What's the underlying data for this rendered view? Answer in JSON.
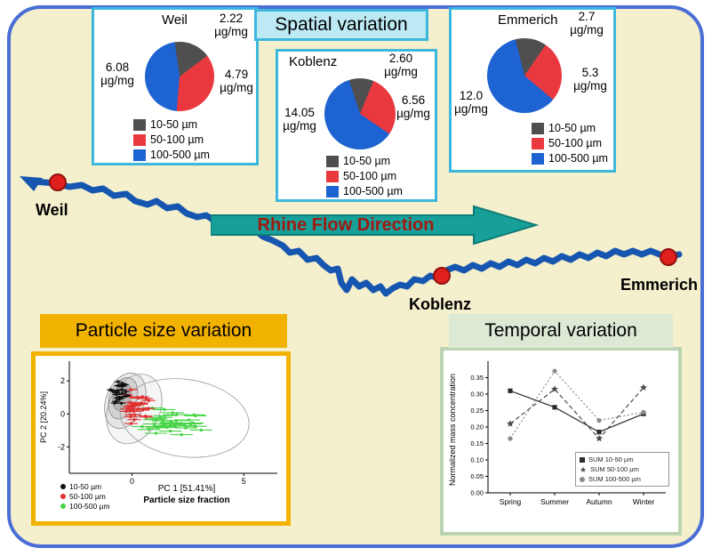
{
  "palette": {
    "figure_bg": "#f4efcd",
    "figure_border": "#4a6ed6",
    "cyan_border": "#3db8dc",
    "cyan_bg": "#bce9f3",
    "gold": "#f2b200",
    "pale_green": "#dce9d5",
    "river_blue": "#1656b0",
    "marker_red": "#e0201c",
    "arrow_teal": "#17a09a",
    "arrow_text_red": "#9e1a10",
    "pie_gray": "#4f4f4f",
    "pie_red": "#e9393f",
    "pie_blue": "#1d63d1"
  },
  "titles": {
    "spatial": "Spatial variation",
    "particle": "Particle size variation",
    "temporal": "Temporal variation"
  },
  "map": {
    "flow_label": "Rhine Flow Direction",
    "sites": [
      "Weil",
      "Koblenz",
      "Emmerich"
    ]
  },
  "unit": "µg/mg",
  "size_legend": [
    "10-50 µm",
    "50-100 µm",
    "100-500 µm"
  ],
  "chart_data": [
    {
      "id": "pie-weil",
      "type": "pie",
      "title": "Weil",
      "labels": [
        "10-50 µm",
        "50-100 µm",
        "100-500 µm"
      ],
      "values": [
        2.22,
        4.79,
        6.08
      ],
      "value_texts": [
        "2.22",
        "4.79",
        "6.08"
      ],
      "unit": "µg/mg",
      "colors": [
        "#4f4f4f",
        "#e9393f",
        "#1d63d1"
      ],
      "start_angle": -8
    },
    {
      "id": "pie-koblenz",
      "type": "pie",
      "title": "Koblenz",
      "labels": [
        "10-50 µm",
        "50-100 µm",
        "100-500 µm"
      ],
      "values": [
        2.6,
        6.56,
        14.05
      ],
      "value_texts": [
        "2.60",
        "6.56",
        "14.05"
      ],
      "unit": "µg/mg",
      "colors": [
        "#4f4f4f",
        "#e9393f",
        "#1d63d1"
      ],
      "start_angle": -18
    },
    {
      "id": "pie-emmerich",
      "type": "pie",
      "title": "Emmerich",
      "labels": [
        "10-50 µm",
        "50-100 µm",
        "100-500 µm"
      ],
      "values": [
        2.7,
        5.3,
        12.0
      ],
      "value_texts": [
        "2.7",
        "5.3",
        "12.0"
      ],
      "unit": "µg/mg",
      "colors": [
        "#4f4f4f",
        "#e9393f",
        "#1d63d1"
      ],
      "start_angle": -14
    },
    {
      "id": "pca",
      "type": "scatter",
      "xlabel": "PC 1 [51.41%]",
      "xlabel2": "Particle size fraction",
      "ylabel": "PC 2 [20.24%]",
      "xlim": [
        -2.8,
        6.5
      ],
      "ylim": [
        -3.6,
        3.2
      ],
      "xticks": [
        0,
        5
      ],
      "yticks": [
        2,
        0,
        -2
      ],
      "legend": [
        "10-50 µm",
        "50-100 µm",
        "100-500 µm"
      ],
      "legend_colors": [
        "#111111",
        "#e03131",
        "#46d446"
      ],
      "clusters": [
        {
          "name": "10-50 µm",
          "color": "#111111",
          "cx": -0.55,
          "cy": 1.2,
          "sx": 0.5,
          "sy": 0.95,
          "n": 26,
          "bar": 0.18,
          "seed": 7
        },
        {
          "name": "50-100 µm",
          "color": "#e03131",
          "cx": 0.25,
          "cy": 0.45,
          "sx": 0.85,
          "sy": 1.1,
          "n": 36,
          "bar": 0.3,
          "seed": 13
        },
        {
          "name": "100-500 µm",
          "color": "#46d446",
          "cx": 1.8,
          "cy": -0.55,
          "sx": 1.9,
          "sy": 1.15,
          "n": 40,
          "bar": 0.5,
          "seed": 29
        }
      ],
      "ellipses": [
        {
          "cx": -0.45,
          "cy": 1.05,
          "rx": 0.38,
          "ry": 0.85,
          "rot": 18,
          "fill": "rgba(110,110,110,0.30)",
          "stroke": "#777777"
        },
        {
          "cx": -0.4,
          "cy": 0.95,
          "rx": 0.6,
          "ry": 1.3,
          "rot": 20,
          "fill": "rgba(130,130,130,0.22)",
          "stroke": "#808080"
        },
        {
          "cx": -0.3,
          "cy": 0.8,
          "rx": 0.85,
          "ry": 1.75,
          "rot": 22,
          "fill": "rgba(150,150,150,0.16)",
          "stroke": "#8a8a8a"
        },
        {
          "cx": 0.1,
          "cy": 0.3,
          "rx": 1.15,
          "ry": 2.2,
          "rot": 24,
          "fill": "rgba(160,160,160,0.10)",
          "stroke": "#909090"
        },
        {
          "cx": 2.35,
          "cy": -0.25,
          "rx": 2.9,
          "ry": 2.35,
          "rot": 8,
          "fill": "none",
          "stroke": "#9a9a9a"
        }
      ]
    },
    {
      "id": "temporal",
      "type": "line",
      "categories": [
        "Spring",
        "Summer",
        "Autumn",
        "Winter"
      ],
      "ylabel": "Normalized mass concentration",
      "ylim": [
        0,
        0.4
      ],
      "yticks": [
        0.0,
        0.05,
        0.1,
        0.15,
        0.2,
        0.25,
        0.3,
        0.35
      ],
      "series": [
        {
          "name": "SUM 10-50 µm",
          "marker": "square",
          "line": "solid",
          "color": "#2b2b2b",
          "values": [
            0.31,
            0.26,
            0.185,
            0.24
          ]
        },
        {
          "name": "SUM 50-100 µm",
          "marker": "star",
          "line": "dashed",
          "color": "#4a4a4a",
          "values": [
            0.21,
            0.315,
            0.165,
            0.32
          ]
        },
        {
          "name": "SUM 100-500 µm",
          "marker": "circle",
          "line": "dotted",
          "color": "#8a8a8a",
          "values": [
            0.165,
            0.37,
            0.22,
            0.245
          ]
        }
      ]
    }
  ]
}
